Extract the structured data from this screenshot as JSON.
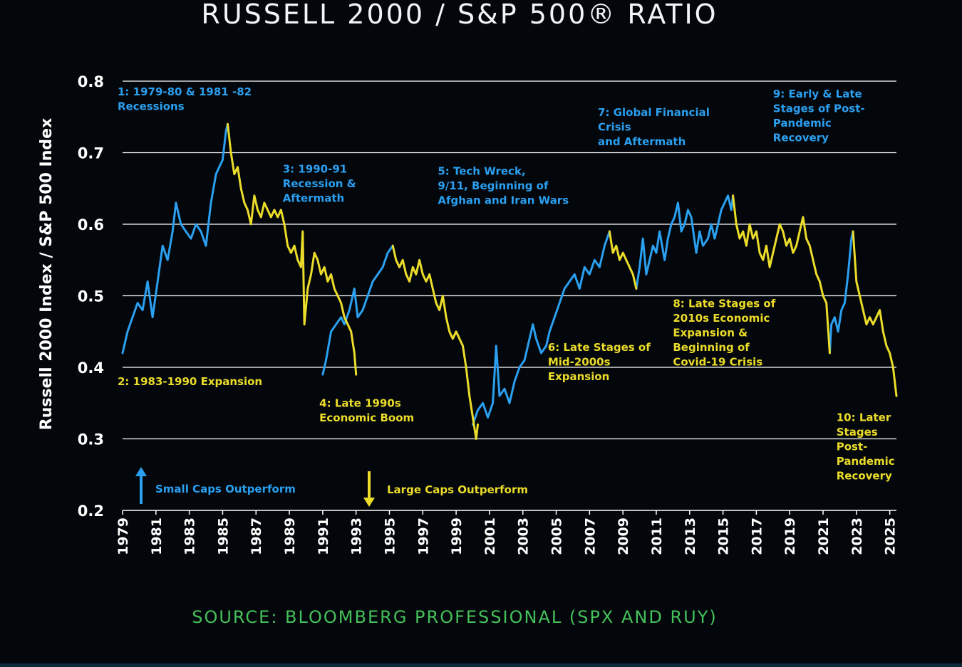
{
  "title": "RUSSELL 2000 / S&P 500® RATIO",
  "source": "SOURCE: BLOOMBERG PROFESSIONAL (SPX AND RUY)",
  "colors": {
    "background": "#03070b",
    "small_caps_blue": "#2b9ff0",
    "large_caps_yellow": "#ecdc2a",
    "grid": "#ffffff",
    "source_green": "#45c15a"
  },
  "chart_data": {
    "type": "line",
    "title": "RUSSELL 2000 / S&P 500® RATIO",
    "xlabel": "",
    "ylabel": "Russell 2000 Index / S&P 500 Index",
    "xlim": [
      1979,
      2025.4
    ],
    "ylim": [
      0.2,
      0.8
    ],
    "grid": true,
    "y_ticks": [
      "0.2",
      "0.3",
      "0.4",
      "0.5",
      "0.6",
      "0.7",
      "0.8"
    ],
    "x_ticks": [
      "1979",
      "1981",
      "1983",
      "1985",
      "1987",
      "1989",
      "1991",
      "1993",
      "1995",
      "1997",
      "1999",
      "2001",
      "2003",
      "2005",
      "2007",
      "2009",
      "2011",
      "2013",
      "2015",
      "2017",
      "2019",
      "2021",
      "2023",
      "2025"
    ],
    "series": [
      {
        "name": "Small Caps Outperform",
        "color": "blue",
        "segments": [
          [
            [
              1979.0,
              0.42
            ],
            [
              1979.3,
              0.45
            ],
            [
              1979.6,
              0.47
            ],
            [
              1979.9,
              0.49
            ],
            [
              1980.2,
              0.48
            ],
            [
              1980.5,
              0.52
            ],
            [
              1980.8,
              0.47
            ],
            [
              1981.1,
              0.52
            ],
            [
              1981.4,
              0.57
            ],
            [
              1981.7,
              0.55
            ],
            [
              1982.0,
              0.59
            ],
            [
              1982.2,
              0.63
            ],
            [
              1982.5,
              0.6
            ],
            [
              1982.8,
              0.59
            ],
            [
              1983.1,
              0.58
            ],
            [
              1983.4,
              0.6
            ],
            [
              1983.7,
              0.59
            ],
            [
              1984.0,
              0.57
            ],
            [
              1984.3,
              0.63
            ],
            [
              1984.6,
              0.67
            ],
            [
              1984.8,
              0.68
            ],
            [
              1985.0,
              0.69
            ],
            [
              1985.2,
              0.73
            ],
            [
              1985.3,
              0.74
            ]
          ],
          [
            [
              1991.0,
              0.39
            ],
            [
              1991.2,
              0.41
            ],
            [
              1991.5,
              0.45
            ],
            [
              1991.8,
              0.46
            ],
            [
              1992.1,
              0.47
            ],
            [
              1992.3,
              0.46
            ],
            [
              1992.6,
              0.48
            ],
            [
              1992.9,
              0.51
            ],
            [
              1993.1,
              0.47
            ],
            [
              1993.4,
              0.48
            ],
            [
              1993.7,
              0.5
            ],
            [
              1994.0,
              0.52
            ],
            [
              1994.3,
              0.53
            ],
            [
              1994.6,
              0.54
            ],
            [
              1994.9,
              0.56
            ],
            [
              1995.2,
              0.57
            ]
          ],
          [
            [
              2000.0,
              0.32
            ],
            [
              2000.3,
              0.34
            ],
            [
              2000.6,
              0.35
            ],
            [
              2000.9,
              0.33
            ],
            [
              2001.2,
              0.35
            ],
            [
              2001.4,
              0.43
            ],
            [
              2001.6,
              0.36
            ],
            [
              2001.9,
              0.37
            ],
            [
              2002.2,
              0.35
            ],
            [
              2002.5,
              0.38
            ],
            [
              2002.8,
              0.4
            ],
            [
              2003.1,
              0.41
            ],
            [
              2003.4,
              0.44
            ],
            [
              2003.6,
              0.46
            ],
            [
              2003.8,
              0.44
            ],
            [
              2004.1,
              0.42
            ],
            [
              2004.4,
              0.43
            ],
            [
              2004.6,
              0.45
            ],
            [
              2004.9,
              0.47
            ],
            [
              2005.2,
              0.49
            ],
            [
              2005.5,
              0.51
            ],
            [
              2005.8,
              0.52
            ],
            [
              2006.1,
              0.53
            ],
            [
              2006.4,
              0.51
            ],
            [
              2006.7,
              0.54
            ],
            [
              2007.0,
              0.53
            ],
            [
              2007.3,
              0.55
            ],
            [
              2007.6,
              0.54
            ],
            [
              2007.9,
              0.57
            ],
            [
              2008.2,
              0.59
            ]
          ],
          [
            [
              2009.8,
              0.51
            ],
            [
              2010.0,
              0.54
            ],
            [
              2010.2,
              0.58
            ],
            [
              2010.4,
              0.53
            ],
            [
              2010.6,
              0.55
            ],
            [
              2010.8,
              0.57
            ],
            [
              2011.0,
              0.56
            ],
            [
              2011.2,
              0.59
            ],
            [
              2011.5,
              0.55
            ],
            [
              2011.7,
              0.58
            ],
            [
              2011.9,
              0.6
            ],
            [
              2012.1,
              0.61
            ],
            [
              2012.3,
              0.63
            ],
            [
              2012.5,
              0.59
            ],
            [
              2012.7,
              0.6
            ],
            [
              2012.9,
              0.62
            ],
            [
              2013.1,
              0.61
            ],
            [
              2013.4,
              0.56
            ],
            [
              2013.6,
              0.59
            ],
            [
              2013.8,
              0.57
            ],
            [
              2014.1,
              0.58
            ],
            [
              2014.3,
              0.6
            ],
            [
              2014.5,
              0.58
            ],
            [
              2014.7,
              0.6
            ],
            [
              2014.9,
              0.62
            ],
            [
              2015.1,
              0.63
            ],
            [
              2015.3,
              0.64
            ],
            [
              2015.5,
              0.62
            ],
            [
              2015.6,
              0.64
            ]
          ],
          [
            [
              2021.4,
              0.42
            ],
            [
              2021.5,
              0.46
            ],
            [
              2021.7,
              0.47
            ],
            [
              2021.9,
              0.45
            ],
            [
              2022.1,
              0.48
            ],
            [
              2022.3,
              0.49
            ],
            [
              2022.5,
              0.53
            ],
            [
              2022.7,
              0.58
            ],
            [
              2022.8,
              0.59
            ]
          ]
        ]
      },
      {
        "name": "Large Caps Outperform",
        "color": "yellow",
        "segments": [
          [
            [
              1985.3,
              0.74
            ],
            [
              1985.5,
              0.7
            ],
            [
              1985.7,
              0.67
            ],
            [
              1985.9,
              0.68
            ],
            [
              1986.1,
              0.65
            ],
            [
              1986.3,
              0.63
            ],
            [
              1986.5,
              0.62
            ],
            [
              1986.7,
              0.6
            ],
            [
              1986.9,
              0.64
            ],
            [
              1987.1,
              0.62
            ],
            [
              1987.3,
              0.61
            ],
            [
              1987.5,
              0.63
            ],
            [
              1987.7,
              0.62
            ],
            [
              1987.9,
              0.61
            ],
            [
              1988.1,
              0.62
            ],
            [
              1988.3,
              0.61
            ],
            [
              1988.5,
              0.62
            ],
            [
              1988.7,
              0.6
            ],
            [
              1988.9,
              0.57
            ],
            [
              1989.1,
              0.56
            ],
            [
              1989.3,
              0.57
            ],
            [
              1989.5,
              0.55
            ],
            [
              1989.7,
              0.54
            ],
            [
              1989.8,
              0.59
            ],
            [
              1989.9,
              0.46
            ],
            [
              1990.1,
              0.51
            ],
            [
              1990.3,
              0.53
            ],
            [
              1990.5,
              0.56
            ],
            [
              1990.7,
              0.55
            ],
            [
              1990.9,
              0.53
            ],
            [
              1991.1,
              0.54
            ],
            [
              1991.3,
              0.52
            ],
            [
              1991.5,
              0.53
            ],
            [
              1991.7,
              0.51
            ],
            [
              1991.9,
              0.5
            ],
            [
              1992.1,
              0.49
            ],
            [
              1992.3,
              0.47
            ],
            [
              1992.5,
              0.46
            ],
            [
              1992.7,
              0.45
            ],
            [
              1992.9,
              0.42
            ],
            [
              1993.0,
              0.39
            ]
          ],
          [
            [
              1995.2,
              0.57
            ],
            [
              1995.4,
              0.55
            ],
            [
              1995.6,
              0.54
            ],
            [
              1995.8,
              0.55
            ],
            [
              1996.0,
              0.53
            ],
            [
              1996.2,
              0.52
            ],
            [
              1996.4,
              0.54
            ],
            [
              1996.6,
              0.53
            ],
            [
              1996.8,
              0.55
            ],
            [
              1997.0,
              0.53
            ],
            [
              1997.2,
              0.52
            ],
            [
              1997.4,
              0.53
            ],
            [
              1997.6,
              0.51
            ],
            [
              1997.8,
              0.49
            ],
            [
              1998.0,
              0.48
            ],
            [
              1998.2,
              0.5
            ],
            [
              1998.4,
              0.47
            ],
            [
              1998.6,
              0.45
            ],
            [
              1998.8,
              0.44
            ],
            [
              1999.0,
              0.45
            ],
            [
              1999.2,
              0.44
            ],
            [
              1999.4,
              0.43
            ],
            [
              1999.6,
              0.4
            ],
            [
              1999.8,
              0.36
            ],
            [
              2000.0,
              0.33
            ],
            [
              2000.2,
              0.3
            ],
            [
              2000.3,
              0.32
            ]
          ],
          [
            [
              2008.2,
              0.59
            ],
            [
              2008.4,
              0.56
            ],
            [
              2008.6,
              0.57
            ],
            [
              2008.8,
              0.55
            ],
            [
              2009.0,
              0.56
            ],
            [
              2009.2,
              0.55
            ],
            [
              2009.4,
              0.54
            ],
            [
              2009.6,
              0.53
            ],
            [
              2009.8,
              0.51
            ]
          ],
          [
            [
              2015.6,
              0.64
            ],
            [
              2015.8,
              0.6
            ],
            [
              2016.0,
              0.58
            ],
            [
              2016.2,
              0.59
            ],
            [
              2016.4,
              0.57
            ],
            [
              2016.6,
              0.6
            ],
            [
              2016.8,
              0.58
            ],
            [
              2017.0,
              0.59
            ],
            [
              2017.2,
              0.56
            ],
            [
              2017.4,
              0.55
            ],
            [
              2017.6,
              0.57
            ],
            [
              2017.8,
              0.54
            ],
            [
              2018.0,
              0.56
            ],
            [
              2018.2,
              0.58
            ],
            [
              2018.4,
              0.6
            ],
            [
              2018.6,
              0.59
            ],
            [
              2018.8,
              0.57
            ],
            [
              2019.0,
              0.58
            ],
            [
              2019.2,
              0.56
            ],
            [
              2019.4,
              0.57
            ],
            [
              2019.6,
              0.59
            ],
            [
              2019.8,
              0.61
            ],
            [
              2020.0,
              0.58
            ],
            [
              2020.2,
              0.57
            ],
            [
              2020.4,
              0.55
            ],
            [
              2020.6,
              0.53
            ],
            [
              2020.8,
              0.52
            ],
            [
              2021.0,
              0.5
            ],
            [
              2021.2,
              0.49
            ],
            [
              2021.4,
              0.42
            ]
          ],
          [
            [
              2022.8,
              0.59
            ],
            [
              2023.0,
              0.52
            ],
            [
              2023.2,
              0.5
            ],
            [
              2023.4,
              0.48
            ],
            [
              2023.6,
              0.46
            ],
            [
              2023.8,
              0.47
            ],
            [
              2024.0,
              0.46
            ],
            [
              2024.2,
              0.47
            ],
            [
              2024.4,
              0.48
            ],
            [
              2024.6,
              0.45
            ],
            [
              2024.8,
              0.43
            ],
            [
              2025.0,
              0.42
            ],
            [
              2025.2,
              0.4
            ],
            [
              2025.4,
              0.36
            ]
          ]
        ]
      }
    ],
    "annotations": [
      {
        "lines": [
          "1: 1979-80 & 1981 -82",
          "Recessions"
        ],
        "color": "blue",
        "x": 1978.7,
        "y": 0.78
      },
      {
        "lines": [
          "2: 1983-1990 Expansion"
        ],
        "color": "yellow",
        "x": 1978.7,
        "y": 0.375
      },
      {
        "lines": [
          "3: 1990-91",
          "Recession &",
          "Aftermath"
        ],
        "color": "blue",
        "x": 1988.6,
        "y": 0.672
      },
      {
        "lines": [
          "4: Late 1990s",
          "Economic Boom"
        ],
        "color": "yellow",
        "x": 1990.8,
        "y": 0.345
      },
      {
        "lines": [
          "5: Tech Wreck,",
          "9/11, Beginning of",
          "Afghan and Iran Wars"
        ],
        "color": "blue",
        "x": 1997.9,
        "y": 0.669
      },
      {
        "lines": [
          "6: Late Stages of",
          "Mid-2000s",
          "Expansion"
        ],
        "color": "yellow",
        "x": 2004.5,
        "y": 0.423
      },
      {
        "lines": [
          "7: Global Financial",
          "Crisis",
          "and Aftermath"
        ],
        "color": "blue",
        "x": 2007.5,
        "y": 0.751
      },
      {
        "lines": [
          "8: Late Stages of",
          "2010s Economic",
          "Expansion &",
          "Beginning of",
          "Covid-19 Crisis"
        ],
        "color": "yellow",
        "x": 2012.0,
        "y": 0.484
      },
      {
        "lines": [
          "9: Early & Late",
          "Stages of Post-",
          "Pandemic",
          "Recovery"
        ],
        "color": "blue",
        "x": 2018.0,
        "y": 0.777
      },
      {
        "lines": [
          "10: Later",
          "Stages",
          "Post-",
          "Pandemic",
          "Recovery"
        ],
        "color": "yellow",
        "x": 2021.8,
        "y": 0.325
      }
    ],
    "legend": {
      "placement": "bottom-left",
      "items": [
        {
          "label": "Small Caps Outperform",
          "color": "blue",
          "direction": "up"
        },
        {
          "label": "Large Caps Outperform",
          "color": "yellow",
          "direction": "down"
        }
      ]
    }
  }
}
